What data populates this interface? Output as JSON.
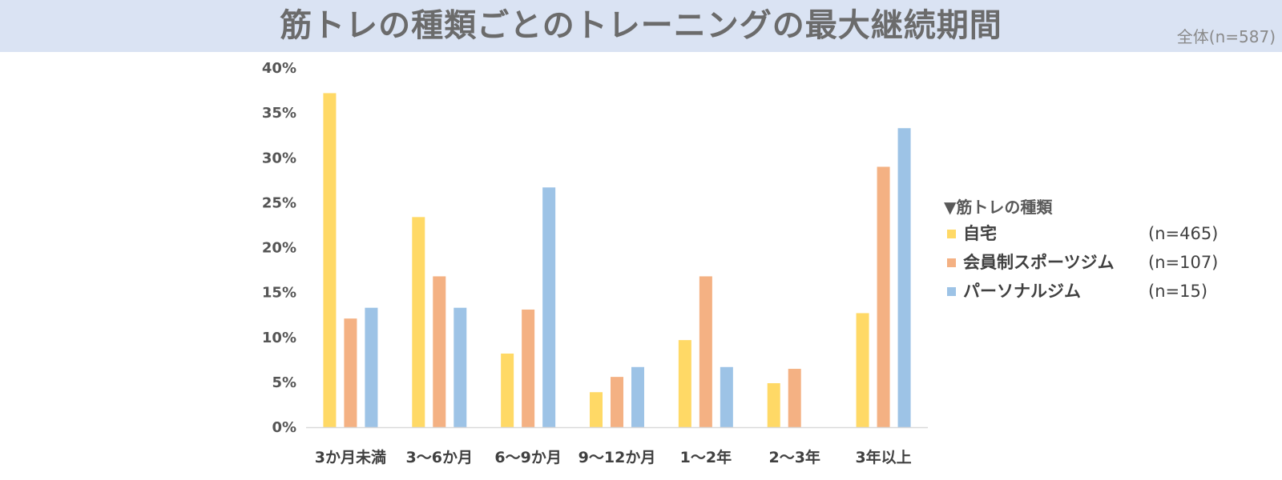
{
  "header": {
    "title": "筋トレの種類ごとのトレーニングの最大継続期間",
    "sample_note": "全体(n=587)"
  },
  "legend": {
    "title": "▼筋トレの種類"
  },
  "chart_data": {
    "type": "bar",
    "title": "筋トレの種類ごとのトレーニングの最大継続期間",
    "categories": [
      "3か月未満",
      "3〜6か月",
      "6〜9か月",
      "9〜12か月",
      "1〜2年",
      "2〜3年",
      "3年以上"
    ],
    "series": [
      {
        "name": "自宅",
        "n_label": "(n=465)",
        "color": "#ffd966",
        "values": [
          37.2,
          23.4,
          8.2,
          3.9,
          9.7,
          4.9,
          12.7
        ]
      },
      {
        "name": "会員制スポーツジム",
        "n_label": "(n=107)",
        "color": "#f4b183",
        "values": [
          12.1,
          16.8,
          13.1,
          5.6,
          16.8,
          6.5,
          29.0
        ]
      },
      {
        "name": "パーソナルジム",
        "n_label": "(n=15)",
        "color": "#9dc3e6",
        "values": [
          13.3,
          13.3,
          26.7,
          6.7,
          6.7,
          0,
          33.3
        ]
      }
    ],
    "ylim": [
      0,
      40
    ],
    "yticks": [
      0,
      5,
      10,
      15,
      20,
      25,
      30,
      35,
      40
    ],
    "ytick_labels": [
      "0%",
      "5%",
      "10%",
      "15%",
      "20%",
      "25%",
      "30%",
      "35%",
      "40%"
    ],
    "grid": false,
    "legend_position": "right"
  }
}
